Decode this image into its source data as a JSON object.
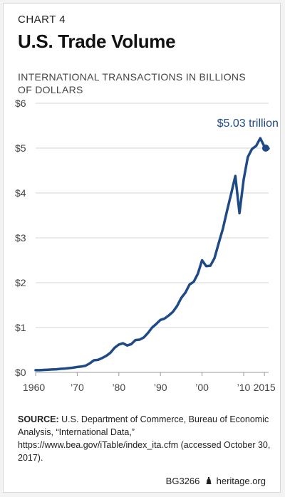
{
  "header": {
    "chart_number": "CHART 4",
    "title": "U.S. Trade Volume",
    "subtitle": "INTERNATIONAL TRANSACTIONS IN BILLIONS OF DOLLARS"
  },
  "chart_data": {
    "type": "line",
    "title": "U.S. Trade Volume",
    "ylabel": "INTERNATIONAL TRANSACTIONS IN BILLIONS OF DOLLARS",
    "xlabel": "",
    "xlim": [
      1960,
      2016
    ],
    "ylim": [
      0,
      6
    ],
    "y_ticks": [
      0,
      1,
      2,
      3,
      4,
      5,
      6
    ],
    "y_tick_labels": [
      "$0",
      "$1",
      "$2",
      "$3",
      "$4",
      "$5",
      "$6"
    ],
    "x_ticks": [
      1960,
      1970,
      1980,
      1990,
      2000,
      2010,
      2015
    ],
    "x_tick_labels": [
      "1960",
      "’70",
      "’80",
      "’90",
      "’00",
      "’10",
      "2015"
    ],
    "grid": true,
    "series_color": "#1f4a86",
    "series": [
      {
        "name": "",
        "x": [
          1960,
          1961,
          1962,
          1963,
          1964,
          1965,
          1966,
          1967,
          1968,
          1969,
          1970,
          1971,
          1972,
          1973,
          1974,
          1975,
          1976,
          1977,
          1978,
          1979,
          1980,
          1981,
          1982,
          1983,
          1984,
          1985,
          1986,
          1987,
          1988,
          1989,
          1990,
          1991,
          1992,
          1993,
          1994,
          1995,
          1996,
          1997,
          1998,
          1999,
          2000,
          2001,
          2002,
          2003,
          2004,
          2005,
          2006,
          2007,
          2008,
          2009,
          2010,
          2011,
          2012,
          2013,
          2014,
          2015,
          2016
        ],
        "values": [
          0.05,
          0.05,
          0.055,
          0.06,
          0.065,
          0.07,
          0.08,
          0.085,
          0.095,
          0.105,
          0.12,
          0.13,
          0.15,
          0.2,
          0.27,
          0.28,
          0.32,
          0.37,
          0.44,
          0.55,
          0.62,
          0.65,
          0.6,
          0.63,
          0.72,
          0.73,
          0.78,
          0.88,
          1.0,
          1.08,
          1.17,
          1.2,
          1.27,
          1.35,
          1.48,
          1.66,
          1.78,
          1.96,
          2.02,
          2.2,
          2.5,
          2.37,
          2.38,
          2.55,
          2.88,
          3.2,
          3.6,
          3.98,
          4.38,
          3.55,
          4.3,
          4.8,
          4.98,
          5.05,
          5.22,
          5.03,
          4.99
        ]
      }
    ],
    "annotation": {
      "label": "$5.03 trillion",
      "x": 2015.3,
      "y": 5.0
    }
  },
  "source": {
    "label": "SOURCE:",
    "text": " U.S. Department of Commerce, Bureau of Economic Analysis, “International Data,” https://www.bea.gov/iTable/index_ita.cfm (accessed October 30, 2017)."
  },
  "footer": {
    "code": "BG3266",
    "site": "heritage.org"
  }
}
